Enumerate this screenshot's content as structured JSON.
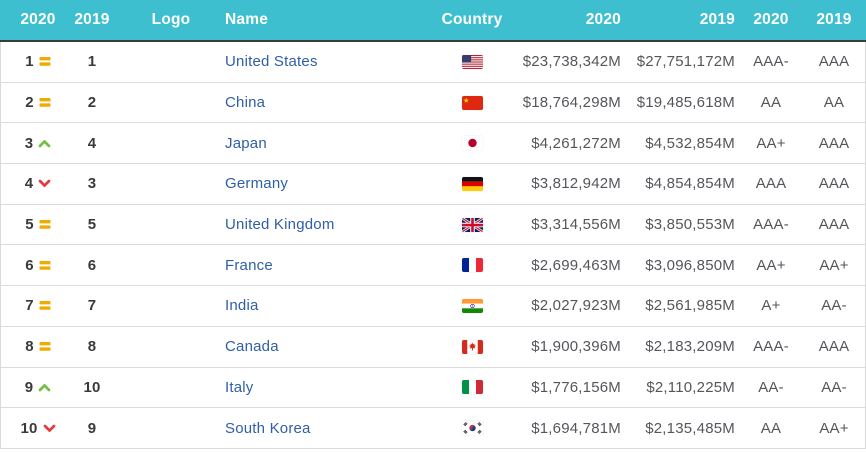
{
  "colors": {
    "header_bg": "#3ebfd0",
    "rank_same": "#f0ab00",
    "rank_up": "#72bf44",
    "rank_down": "#e23b3b",
    "name_link": "#2f5fa5"
  },
  "header": {
    "rank_2020": "2020",
    "rank_2019": "2019",
    "logo": "Logo",
    "name": "Name",
    "country": "Country",
    "value_2020": "2020",
    "value_2019": "2019",
    "rating_2020": "2020",
    "rating_2019": "2019"
  },
  "rows": [
    {
      "rank_2020": "1",
      "change": "same",
      "rank_2019": "1",
      "name": "United States",
      "flag": "us",
      "value_2020": "$23,738,342M",
      "value_2019": "$27,751,172M",
      "rating_2020": "AAA-",
      "rating_2019": "AAA"
    },
    {
      "rank_2020": "2",
      "change": "same",
      "rank_2019": "2",
      "name": "China",
      "flag": "cn",
      "value_2020": "$18,764,298M",
      "value_2019": "$19,485,618M",
      "rating_2020": "AA",
      "rating_2019": "AA"
    },
    {
      "rank_2020": "3",
      "change": "up",
      "rank_2019": "4",
      "name": "Japan",
      "flag": "jp",
      "value_2020": "$4,261,272M",
      "value_2019": "$4,532,854M",
      "rating_2020": "AA+",
      "rating_2019": "AAA"
    },
    {
      "rank_2020": "4",
      "change": "down",
      "rank_2019": "3",
      "name": "Germany",
      "flag": "de",
      "value_2020": "$3,812,942M",
      "value_2019": "$4,854,854M",
      "rating_2020": "AAA",
      "rating_2019": "AAA"
    },
    {
      "rank_2020": "5",
      "change": "same",
      "rank_2019": "5",
      "name": "United Kingdom",
      "flag": "gb",
      "value_2020": "$3,314,556M",
      "value_2019": "$3,850,553M",
      "rating_2020": "AAA-",
      "rating_2019": "AAA"
    },
    {
      "rank_2020": "6",
      "change": "same",
      "rank_2019": "6",
      "name": "France",
      "flag": "fr",
      "value_2020": "$2,699,463M",
      "value_2019": "$3,096,850M",
      "rating_2020": "AA+",
      "rating_2019": "AA+"
    },
    {
      "rank_2020": "7",
      "change": "same",
      "rank_2019": "7",
      "name": "India",
      "flag": "in",
      "value_2020": "$2,027,923M",
      "value_2019": "$2,561,985M",
      "rating_2020": "A+",
      "rating_2019": "AA-"
    },
    {
      "rank_2020": "8",
      "change": "same",
      "rank_2019": "8",
      "name": "Canada",
      "flag": "ca",
      "value_2020": "$1,900,396M",
      "value_2019": "$2,183,209M",
      "rating_2020": "AAA-",
      "rating_2019": "AAA"
    },
    {
      "rank_2020": "9",
      "change": "up",
      "rank_2019": "10",
      "name": "Italy",
      "flag": "it",
      "value_2020": "$1,776,156M",
      "value_2019": "$2,110,225M",
      "rating_2020": "AA-",
      "rating_2019": "AA-"
    },
    {
      "rank_2020": "10",
      "change": "down",
      "rank_2019": "9",
      "name": "South Korea",
      "flag": "kr",
      "value_2020": "$1,694,781M",
      "value_2019": "$2,135,485M",
      "rating_2020": "AA",
      "rating_2019": "AA+"
    }
  ]
}
